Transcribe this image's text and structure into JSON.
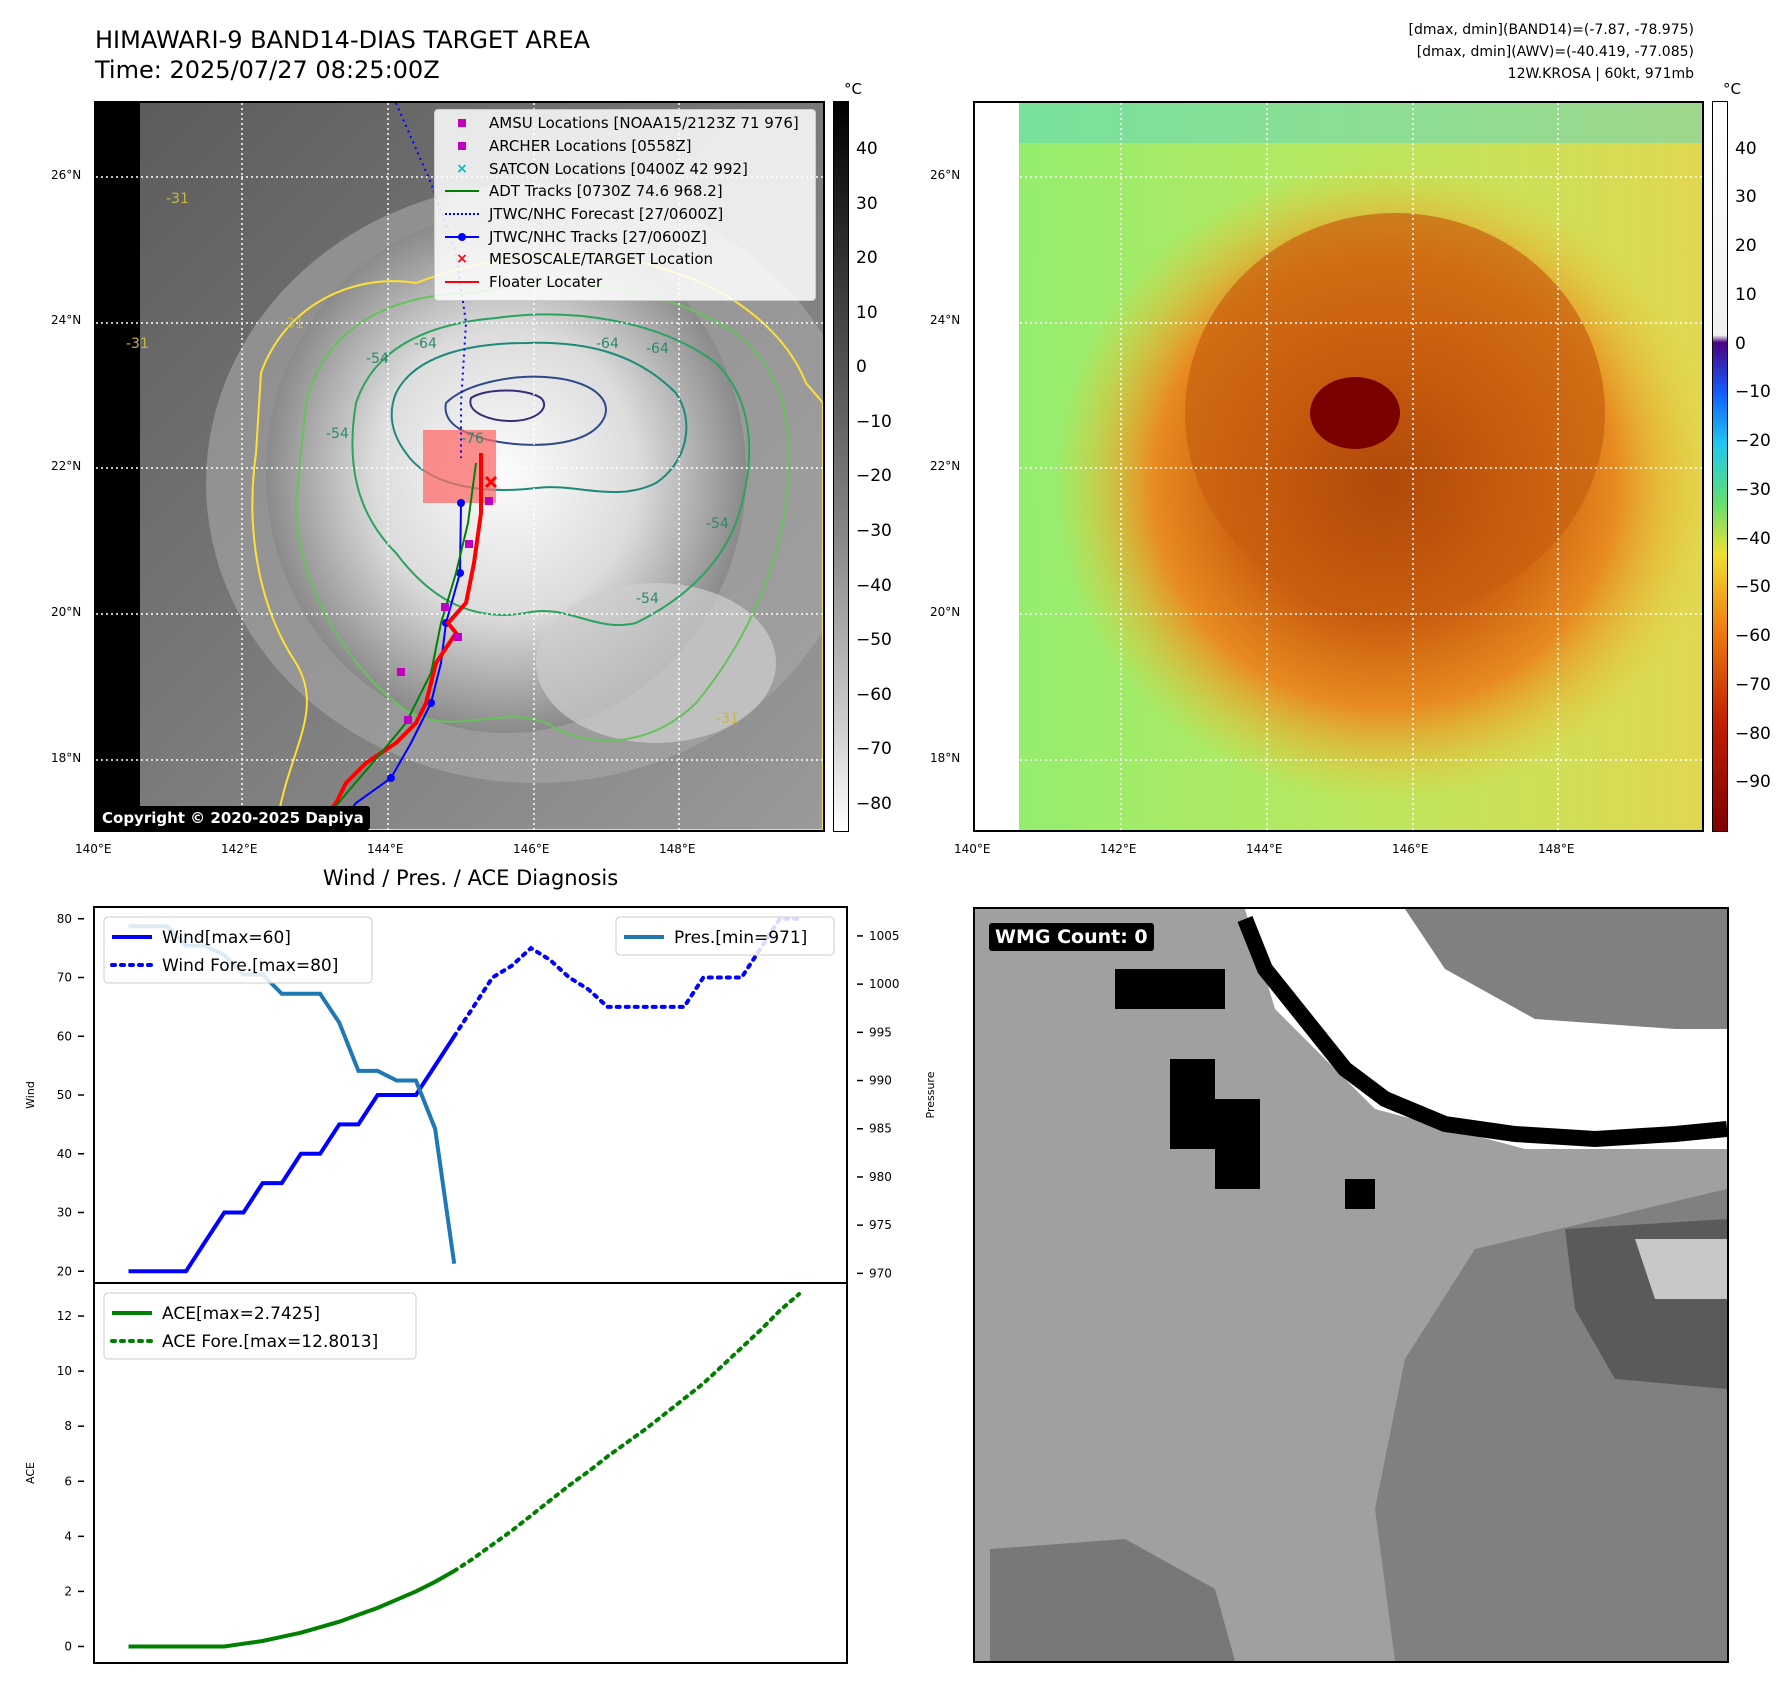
{
  "header": {
    "title_line1": "HIMAWARI-9 BAND14-DIAS TARGET AREA",
    "title_line2": "Time: 2025/07/27 08:25:00Z",
    "info_line1": "[dmax, dmin](BAND14)=(-7.87, -78.975)",
    "info_line2": "[dmax, dmin](AWV)=(-40.419, -77.085)",
    "info_line3": "12W.KROSA | 60kt, 971mb"
  },
  "maps": {
    "lat_ticks": [
      "26°N",
      "24°N",
      "22°N",
      "20°N",
      "18°N"
    ],
    "lon_ticks": [
      "140°E",
      "142°E",
      "144°E",
      "146°E",
      "148°E"
    ],
    "copyright": "Copyright © 2020-2025 Dapiya",
    "contour_labels": [
      "-31",
      "-31",
      "-31",
      "-54",
      "-54",
      "-64",
      "-64",
      "-64",
      "-54",
      "-76",
      "-54",
      "-31"
    ],
    "colorbar_ir": {
      "unit": "°C",
      "ticks": [
        "40",
        "30",
        "20",
        "10",
        "0",
        "−10",
        "−20",
        "−30",
        "−40",
        "−50",
        "−60",
        "−70",
        "−80"
      ],
      "min": -85,
      "max": 49
    },
    "colorbar_wv": {
      "unit": "°C",
      "ticks": [
        "40",
        "30",
        "20",
        "10",
        "0",
        "−10",
        "−20",
        "−30",
        "−40",
        "−50",
        "−60",
        "−70",
        "−80",
        "−90"
      ],
      "min": -100,
      "max": 50
    },
    "legend": [
      {
        "label": "AMSU Locations [NOAA15/2123Z 71 976]",
        "symbol": "square",
        "color": "#bf00bf"
      },
      {
        "label": "ARCHER Locations [0558Z]",
        "symbol": "square",
        "color": "#bf00bf"
      },
      {
        "label": "SATCON Locations [0400Z 42 992]",
        "symbol": "x",
        "color": "#00bfbf"
      },
      {
        "label": "ADT Tracks [0730Z 74.6 968.2]",
        "symbol": "line",
        "color": "#008000"
      },
      {
        "label": "JTWC/NHC Forecast [27/0600Z]",
        "symbol": "dotted",
        "color": "#0000ff"
      },
      {
        "label": "JTWC/NHC Tracks [27/0600Z]",
        "symbol": "line-dot",
        "color": "#0000ff"
      },
      {
        "label": "MESOSCALE/TARGET Location",
        "symbol": "x",
        "color": "#ff0000"
      },
      {
        "label": "Floater Locater",
        "symbol": "line",
        "color": "#ff0000"
      }
    ]
  },
  "diag": {
    "title": "Wind / Pres. / ACE Diagnosis",
    "wind_ylabel": "Wind",
    "pres_ylabel": "Pressure",
    "ace_ylabel": "ACE",
    "wind_legend": [
      "Wind[max=60]",
      "Wind Fore.[max=80]"
    ],
    "pres_legend": [
      "Pres.[min=971]"
    ],
    "ace_legend": [
      "ACE[max=2.7425]",
      "ACE Fore.[max=12.8013]"
    ],
    "wind_ticks": [
      "80",
      "70",
      "60",
      "50",
      "40",
      "30",
      "20"
    ],
    "pres_ticks": [
      "1005",
      "1000",
      "995",
      "990",
      "985",
      "980",
      "975",
      "970"
    ],
    "ace_ticks": [
      "12",
      "10",
      "8",
      "6",
      "4",
      "2",
      "0"
    ]
  },
  "wmg": {
    "label": "WMG Count: 0"
  },
  "colors": {
    "wind": "#0000ff",
    "pressure": "#1f77b4",
    "ace": "#008000",
    "track_red": "#ff0000",
    "track_blue": "#0000ff",
    "contour_yellow": "#ffe033",
    "contour_green": "#2ca25f"
  },
  "chart_data": [
    {
      "type": "line",
      "title": "Wind / Pres. / ACE Diagnosis",
      "ylabel": "Wind",
      "ylim": [
        18,
        82
      ],
      "series": [
        {
          "name": "Wind[max=60]",
          "x": [
            0,
            1,
            2,
            3,
            4,
            5,
            6,
            7,
            8,
            9,
            10,
            11,
            12,
            13,
            14,
            15,
            16,
            17
          ],
          "values": [
            20,
            20,
            20,
            20,
            25,
            30,
            30,
            35,
            35,
            40,
            40,
            45,
            45,
            50,
            50,
            50,
            55,
            60
          ]
        },
        {
          "name": "Wind Fore.[max=80]",
          "x": [
            17,
            18,
            19,
            20,
            21,
            22,
            23,
            24,
            25,
            26,
            27,
            28,
            29,
            30,
            31,
            32,
            33,
            34,
            35
          ],
          "values": [
            60,
            65,
            70,
            72,
            75,
            73,
            70,
            68,
            65,
            65,
            65,
            65,
            65,
            70,
            70,
            70,
            75,
            80,
            80
          ]
        }
      ]
    },
    {
      "type": "line",
      "ylabel": "Pressure",
      "ylim": [
        969,
        1008
      ],
      "series": [
        {
          "name": "Pres.[min=971]",
          "x": [
            0,
            1,
            2,
            3,
            4,
            5,
            6,
            7,
            8,
            9,
            10,
            11,
            12,
            13,
            14,
            15,
            16,
            17
          ],
          "values": [
            1006,
            1006,
            1006,
            1004,
            1004,
            1003,
            1001,
            1001,
            999,
            999,
            999,
            996,
            991,
            991,
            990,
            990,
            985,
            971
          ]
        }
      ]
    },
    {
      "type": "line",
      "ylabel": "ACE",
      "ylim": [
        -0.6,
        13.2
      ],
      "series": [
        {
          "name": "ACE[max=2.7425]",
          "x": [
            0,
            1,
            2,
            3,
            4,
            5,
            6,
            7,
            8,
            9,
            10,
            11,
            12,
            13,
            14,
            15,
            16,
            17
          ],
          "values": [
            0,
            0,
            0,
            0,
            0,
            0,
            0.1,
            0.2,
            0.35,
            0.5,
            0.7,
            0.9,
            1.15,
            1.4,
            1.7,
            2.0,
            2.35,
            2.74
          ]
        },
        {
          "name": "ACE Fore.[max=12.8013]",
          "x": [
            17,
            18,
            19,
            20,
            21,
            22,
            23,
            24,
            25,
            26,
            27,
            28,
            29,
            30,
            31,
            32,
            33,
            34,
            35
          ],
          "values": [
            2.74,
            3.2,
            3.7,
            4.2,
            4.75,
            5.3,
            5.85,
            6.35,
            6.9,
            7.4,
            7.9,
            8.45,
            9.0,
            9.55,
            10.2,
            10.85,
            11.5,
            12.2,
            12.8
          ]
        }
      ]
    }
  ]
}
